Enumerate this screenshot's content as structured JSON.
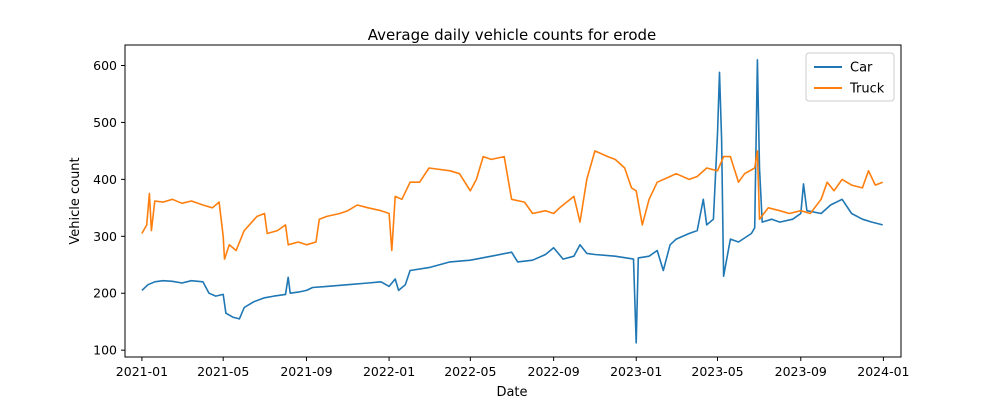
{
  "chart_data": {
    "type": "line",
    "title": "Average daily vehicle counts for erode",
    "xlabel": "Date",
    "ylabel": "Vehicle count",
    "x_ticks": [
      "2021-01",
      "2021-05",
      "2021-09",
      "2022-01",
      "2022-05",
      "2022-09",
      "2023-01",
      "2023-05",
      "2023-09",
      "2024-01"
    ],
    "y_ticks": [
      100,
      200,
      300,
      400,
      500,
      600
    ],
    "xlim": [
      "2020-12-07",
      "2024-01-27"
    ],
    "ylim": [
      88,
      636
    ],
    "legend": {
      "position": "top-right",
      "entries": [
        "Car",
        "Truck"
      ]
    },
    "grid": false,
    "series": [
      {
        "name": "Car",
        "color": "#1f77b4",
        "points": [
          [
            "2021-01-01",
            205
          ],
          [
            "2021-01-10",
            215
          ],
          [
            "2021-01-20",
            220
          ],
          [
            "2021-02-01",
            222
          ],
          [
            "2021-02-15",
            221
          ],
          [
            "2021-03-01",
            218
          ],
          [
            "2021-03-15",
            222
          ],
          [
            "2021-04-01",
            220
          ],
          [
            "2021-04-10",
            200
          ],
          [
            "2021-04-20",
            195
          ],
          [
            "2021-05-01",
            198
          ],
          [
            "2021-05-05",
            165
          ],
          [
            "2021-05-15",
            158
          ],
          [
            "2021-05-25",
            155
          ],
          [
            "2021-06-01",
            175
          ],
          [
            "2021-06-15",
            185
          ],
          [
            "2021-07-01",
            192
          ],
          [
            "2021-07-15",
            195
          ],
          [
            "2021-08-01",
            198
          ],
          [
            "2021-08-05",
            228
          ],
          [
            "2021-08-08",
            200
          ],
          [
            "2021-08-20",
            202
          ],
          [
            "2021-09-01",
            205
          ],
          [
            "2021-09-10",
            210
          ],
          [
            "2021-10-01",
            212
          ],
          [
            "2021-11-01",
            215
          ],
          [
            "2021-12-01",
            218
          ],
          [
            "2021-12-20",
            220
          ],
          [
            "2022-01-01",
            212
          ],
          [
            "2022-01-10",
            225
          ],
          [
            "2022-01-15",
            205
          ],
          [
            "2022-01-25",
            215
          ],
          [
            "2022-02-01",
            240
          ],
          [
            "2022-03-01",
            245
          ],
          [
            "2022-04-01",
            255
          ],
          [
            "2022-05-01",
            258
          ],
          [
            "2022-06-01",
            265
          ],
          [
            "2022-07-01",
            272
          ],
          [
            "2022-07-10",
            255
          ],
          [
            "2022-08-01",
            258
          ],
          [
            "2022-08-20",
            268
          ],
          [
            "2022-09-01",
            280
          ],
          [
            "2022-09-15",
            260
          ],
          [
            "2022-10-01",
            265
          ],
          [
            "2022-10-10",
            285
          ],
          [
            "2022-10-20",
            270
          ],
          [
            "2022-11-01",
            268
          ],
          [
            "2022-12-01",
            265
          ],
          [
            "2022-12-28",
            260
          ],
          [
            "2023-01-01",
            113
          ],
          [
            "2023-01-04",
            262
          ],
          [
            "2023-01-20",
            265
          ],
          [
            "2023-02-01",
            275
          ],
          [
            "2023-02-10",
            240
          ],
          [
            "2023-02-20",
            285
          ],
          [
            "2023-03-01",
            295
          ],
          [
            "2023-03-20",
            305
          ],
          [
            "2023-04-01",
            310
          ],
          [
            "2023-04-10",
            365
          ],
          [
            "2023-04-15",
            320
          ],
          [
            "2023-04-25",
            330
          ],
          [
            "2023-05-01",
            480
          ],
          [
            "2023-05-04",
            588
          ],
          [
            "2023-05-07",
            470
          ],
          [
            "2023-05-10",
            230
          ],
          [
            "2023-05-20",
            295
          ],
          [
            "2023-06-01",
            290
          ],
          [
            "2023-06-20",
            305
          ],
          [
            "2023-06-25",
            315
          ],
          [
            "2023-06-29",
            610
          ],
          [
            "2023-07-02",
            420
          ],
          [
            "2023-07-06",
            325
          ],
          [
            "2023-07-20",
            330
          ],
          [
            "2023-08-01",
            325
          ],
          [
            "2023-08-20",
            330
          ],
          [
            "2023-09-01",
            340
          ],
          [
            "2023-09-05",
            392
          ],
          [
            "2023-09-10",
            345
          ],
          [
            "2023-10-01",
            340
          ],
          [
            "2023-10-15",
            355
          ],
          [
            "2023-11-01",
            365
          ],
          [
            "2023-11-15",
            340
          ],
          [
            "2023-12-01",
            330
          ],
          [
            "2023-12-15",
            325
          ],
          [
            "2023-12-31",
            320
          ]
        ]
      },
      {
        "name": "Truck",
        "color": "#ff7f0e",
        "points": [
          [
            "2021-01-01",
            305
          ],
          [
            "2021-01-08",
            320
          ],
          [
            "2021-01-12",
            375
          ],
          [
            "2021-01-15",
            310
          ],
          [
            "2021-01-20",
            362
          ],
          [
            "2021-02-01",
            360
          ],
          [
            "2021-02-15",
            365
          ],
          [
            "2021-03-01",
            358
          ],
          [
            "2021-03-15",
            362
          ],
          [
            "2021-04-01",
            355
          ],
          [
            "2021-04-15",
            350
          ],
          [
            "2021-04-25",
            360
          ],
          [
            "2021-05-01",
            300
          ],
          [
            "2021-05-03",
            260
          ],
          [
            "2021-05-10",
            285
          ],
          [
            "2021-05-20",
            275
          ],
          [
            "2021-06-01",
            310
          ],
          [
            "2021-06-20",
            335
          ],
          [
            "2021-07-01",
            340
          ],
          [
            "2021-07-05",
            305
          ],
          [
            "2021-07-20",
            310
          ],
          [
            "2021-08-01",
            320
          ],
          [
            "2021-08-05",
            285
          ],
          [
            "2021-08-20",
            290
          ],
          [
            "2021-09-01",
            285
          ],
          [
            "2021-09-15",
            290
          ],
          [
            "2021-09-20",
            330
          ],
          [
            "2021-10-01",
            335
          ],
          [
            "2021-10-20",
            340
          ],
          [
            "2021-11-01",
            345
          ],
          [
            "2021-11-15",
            355
          ],
          [
            "2021-12-01",
            350
          ],
          [
            "2021-12-20",
            345
          ],
          [
            "2022-01-01",
            340
          ],
          [
            "2022-01-05",
            275
          ],
          [
            "2022-01-10",
            370
          ],
          [
            "2022-01-20",
            365
          ],
          [
            "2022-02-01",
            395
          ],
          [
            "2022-02-15",
            395
          ],
          [
            "2022-03-01",
            420
          ],
          [
            "2022-04-01",
            415
          ],
          [
            "2022-04-15",
            410
          ],
          [
            "2022-05-01",
            380
          ],
          [
            "2022-05-10",
            400
          ],
          [
            "2022-05-20",
            440
          ],
          [
            "2022-06-01",
            435
          ],
          [
            "2022-06-20",
            440
          ],
          [
            "2022-07-01",
            365
          ],
          [
            "2022-07-20",
            360
          ],
          [
            "2022-08-01",
            340
          ],
          [
            "2022-08-20",
            345
          ],
          [
            "2022-09-01",
            340
          ],
          [
            "2022-09-10",
            350
          ],
          [
            "2022-10-01",
            370
          ],
          [
            "2022-10-10",
            325
          ],
          [
            "2022-10-20",
            400
          ],
          [
            "2022-11-01",
            450
          ],
          [
            "2022-11-20",
            440
          ],
          [
            "2022-12-01",
            435
          ],
          [
            "2022-12-15",
            420
          ],
          [
            "2022-12-25",
            385
          ],
          [
            "2023-01-01",
            380
          ],
          [
            "2023-01-10",
            320
          ],
          [
            "2023-01-20",
            365
          ],
          [
            "2023-02-01",
            395
          ],
          [
            "2023-02-20",
            405
          ],
          [
            "2023-03-01",
            410
          ],
          [
            "2023-03-20",
            400
          ],
          [
            "2023-04-01",
            405
          ],
          [
            "2023-04-15",
            420
          ],
          [
            "2023-05-01",
            415
          ],
          [
            "2023-05-10",
            440
          ],
          [
            "2023-05-20",
            440
          ],
          [
            "2023-06-01",
            395
          ],
          [
            "2023-06-10",
            410
          ],
          [
            "2023-06-25",
            420
          ],
          [
            "2023-06-29",
            450
          ],
          [
            "2023-07-02",
            330
          ],
          [
            "2023-07-15",
            350
          ],
          [
            "2023-08-01",
            345
          ],
          [
            "2023-08-15",
            340
          ],
          [
            "2023-09-01",
            345
          ],
          [
            "2023-09-15",
            340
          ],
          [
            "2023-10-01",
            365
          ],
          [
            "2023-10-10",
            395
          ],
          [
            "2023-10-20",
            380
          ],
          [
            "2023-11-01",
            400
          ],
          [
            "2023-11-15",
            390
          ],
          [
            "2023-12-01",
            385
          ],
          [
            "2023-12-10",
            415
          ],
          [
            "2023-12-20",
            390
          ],
          [
            "2023-12-31",
            395
          ]
        ]
      }
    ]
  }
}
